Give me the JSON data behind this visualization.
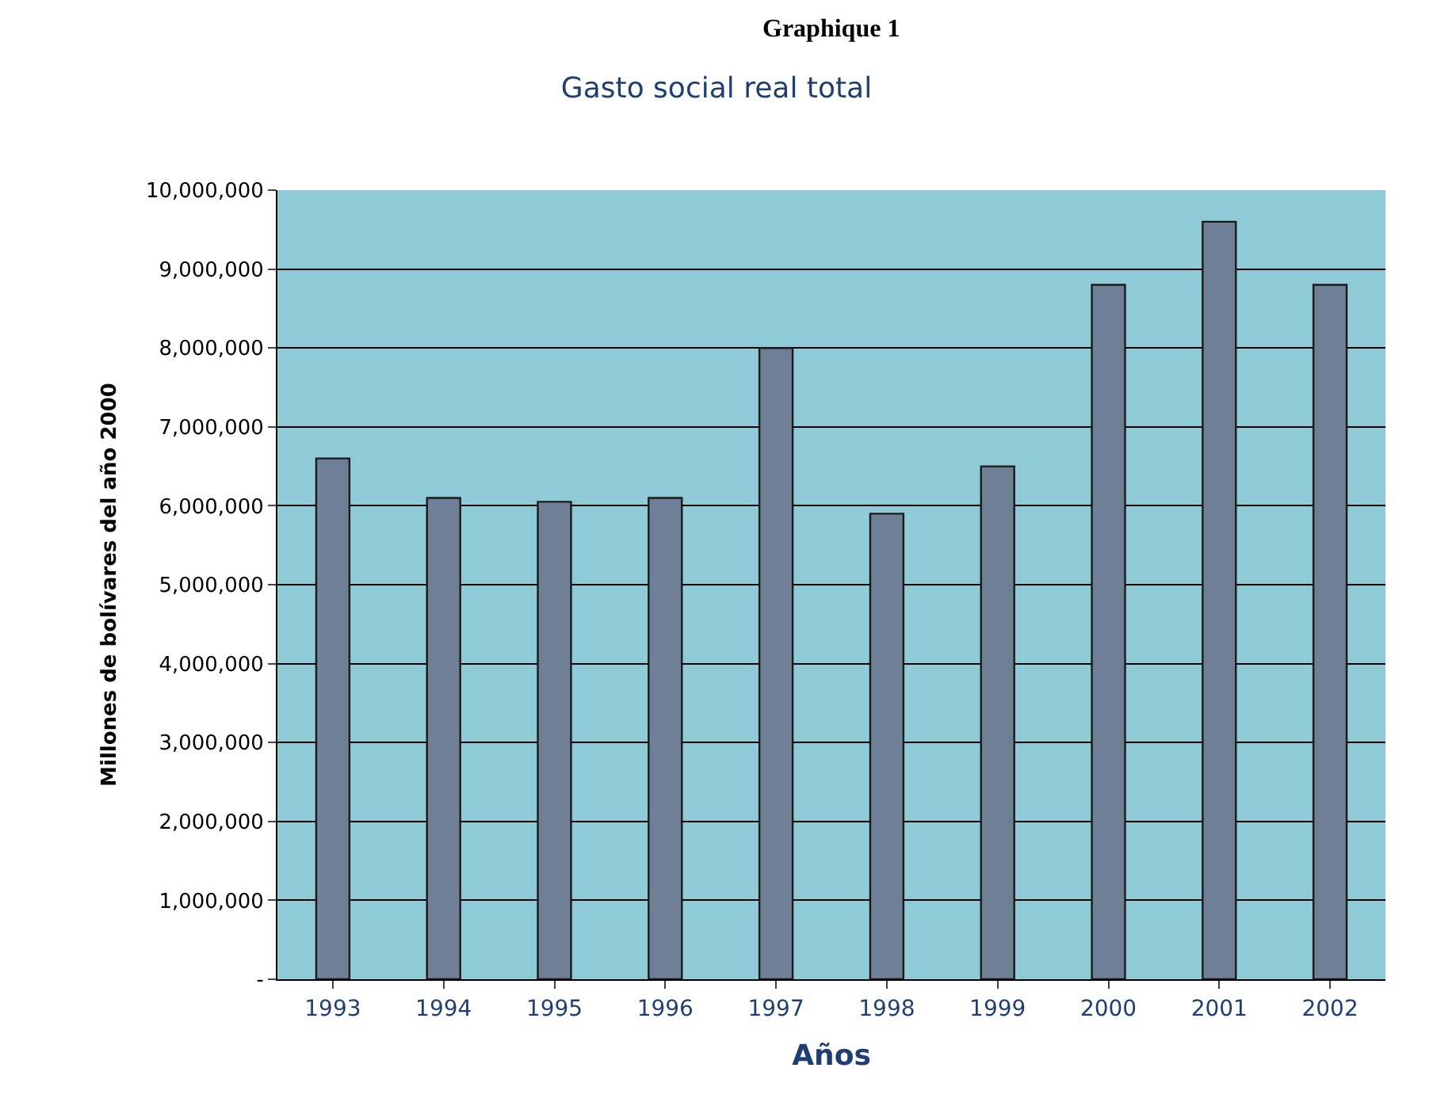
{
  "chart_data": {
    "type": "bar",
    "title": "Gasto social real total",
    "xlabel": "Años",
    "ylabel": "Millones de bolívares del año 2000",
    "annotations": [
      "Graphique 1"
    ],
    "categories": [
      "1993",
      "1994",
      "1995",
      "1996",
      "1997",
      "1998",
      "1999",
      "2000",
      "2001",
      "2002"
    ],
    "values": [
      6600000,
      6100000,
      6050000,
      6100000,
      8000000,
      5900000,
      6500000,
      8800000,
      9600000,
      8800000
    ],
    "color": "#6f7f96",
    "ylim": [
      0,
      10000000
    ],
    "yticks": [
      {
        "value": 0,
        "label": "-"
      },
      {
        "value": 1000000,
        "label": "1,000,000"
      },
      {
        "value": 2000000,
        "label": "2,000,000"
      },
      {
        "value": 3000000,
        "label": "3,000,000"
      },
      {
        "value": 4000000,
        "label": "4,000,000"
      },
      {
        "value": 5000000,
        "label": "5,000,000"
      },
      {
        "value": 6000000,
        "label": "6,000,000"
      },
      {
        "value": 7000000,
        "label": "7,000,000"
      },
      {
        "value": 8000000,
        "label": "8,000,000"
      },
      {
        "value": 9000000,
        "label": "9,000,000"
      },
      {
        "value": 10000000,
        "label": "10,000,000"
      }
    ],
    "grid": "y",
    "legend": false
  }
}
